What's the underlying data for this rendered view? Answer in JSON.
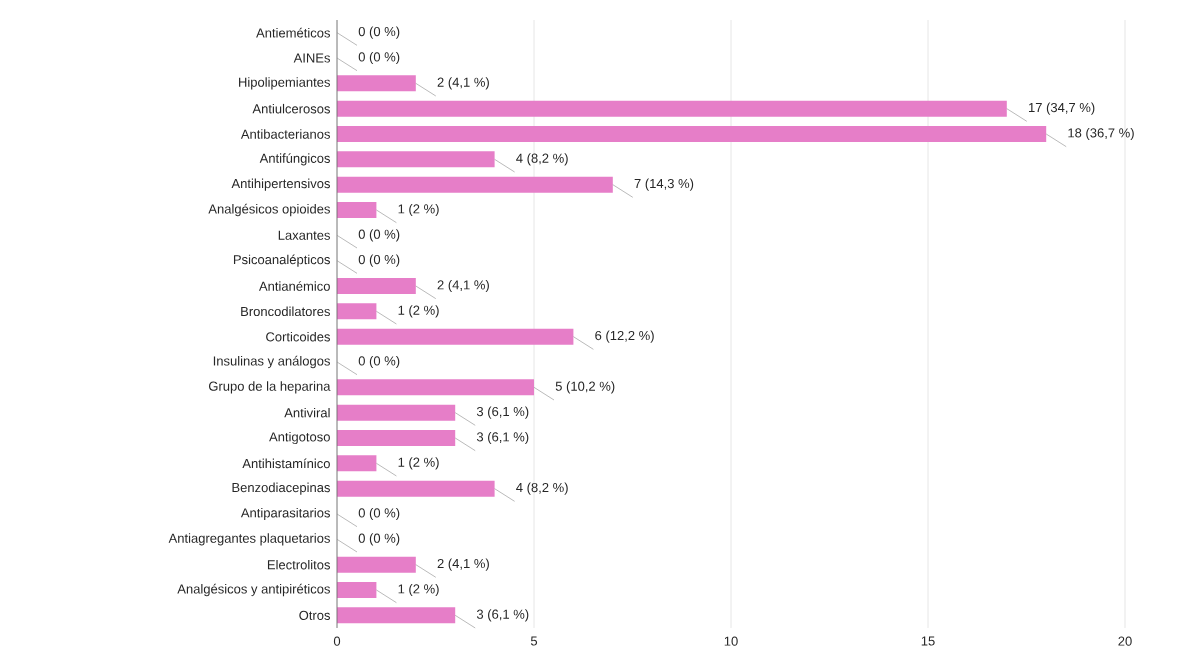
{
  "chart_data": {
    "type": "bar",
    "orientation": "horizontal",
    "categories": [
      "Antieméticos",
      "AINEs",
      "Hipolipemiantes",
      "Antiulcerosos",
      "Antibacterianos",
      "Antifúngicos",
      "Antihipertensivos",
      "Analgésicos opioides",
      "Laxantes",
      "Psicoanalépticos",
      "Antianémico",
      "Broncodilatores",
      "Corticoides",
      "Insulinas y análogos",
      "Grupo de la heparina",
      "Antiviral",
      "Antigotoso",
      "Antihistamínico",
      "Benzodiacepinas",
      "Antiparasitarios",
      "Antiagregantes plaquetarios",
      "Electrolitos",
      "Analgésicos y antipiréticos",
      "Otros"
    ],
    "values": [
      0,
      0,
      2,
      17,
      18,
      4,
      7,
      1,
      0,
      0,
      2,
      1,
      6,
      0,
      5,
      3,
      3,
      1,
      4,
      0,
      0,
      2,
      1,
      3
    ],
    "value_labels": [
      "0 (0 %)",
      "0 (0 %)",
      "2 (4,1 %)",
      "17 (34,7 %)",
      "18 (36,7 %)",
      "4 (8,2 %)",
      "7 (14,3 %)",
      "1 (2 %)",
      "0 (0 %)",
      "0 (0 %)",
      "2 (4,1 %)",
      "1 (2 %)",
      "6 (12,2 %)",
      "0 (0 %)",
      "5 (10,2 %)",
      "3 (6,1 %)",
      "3 (6,1 %)",
      "1 (2 %)",
      "4 (8,2 %)",
      "0 (0 %)",
      "0 (0 %)",
      "2 (4,1 %)",
      "1 (2 %)",
      "3 (6,1 %)"
    ],
    "color": "#e67ec8",
    "xlim": [
      0,
      20
    ],
    "xticks": [
      0,
      5,
      10,
      15,
      20
    ],
    "grid": "x"
  }
}
